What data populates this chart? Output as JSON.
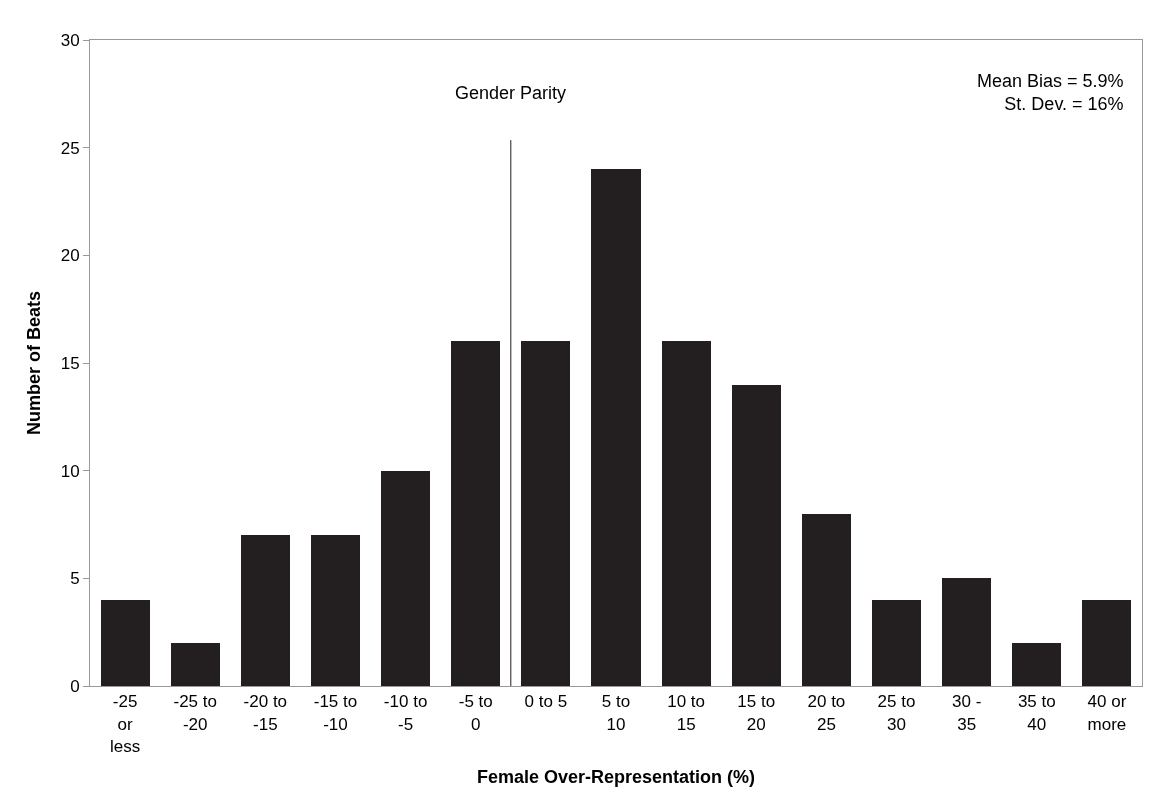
{
  "chart_data": {
    "type": "bar",
    "xlabel": "Female Over-Representation (%)",
    "ylabel": "Number of Beats",
    "categories": [
      "-25\nor\nless",
      "-25 to\n-20",
      "-20 to\n-15",
      "-15 to\n-10",
      "-10 to\n-5",
      "-5 to\n0",
      "0 to 5",
      "5 to\n10",
      "10 to\n15",
      "15 to\n20",
      "20 to\n25",
      "25 to\n30",
      "30 -\n35",
      "35 to\n40",
      "40 or\nmore"
    ],
    "values": [
      4,
      2,
      7,
      7,
      10,
      16,
      16,
      24,
      16,
      14,
      8,
      4,
      5,
      2,
      4
    ],
    "color": "#231f20",
    "ylim": [
      0,
      30
    ],
    "yticks": [
      0,
      5,
      10,
      15,
      20,
      25,
      30
    ],
    "annotations": [
      "Gender Parity",
      "Mean Bias = 5.9%\nSt. Dev. = 16%"
    ]
  }
}
